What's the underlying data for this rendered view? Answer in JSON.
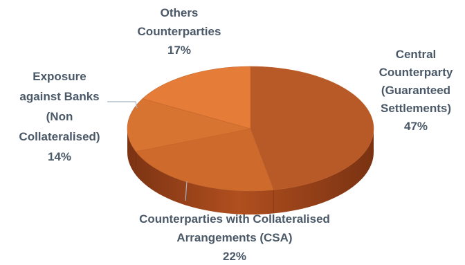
{
  "chart_data": {
    "type": "pie",
    "style": "3d",
    "slices": [
      {
        "label": [
          "Central",
          "Counterparty",
          "(Guaranteed",
          "Settlements)"
        ],
        "value": 47,
        "value_label": "47%",
        "color": "#b85a28"
      },
      {
        "label": [
          "Counterparties with Collateralised",
          "Arrangements (CSA)"
        ],
        "value": 22,
        "value_label": "22%",
        "color": "#cd6a2c"
      },
      {
        "label": [
          "Exposure",
          "against Banks",
          "(Non",
          "Collateralised)"
        ],
        "value": 14,
        "value_label": "14%",
        "color": "#d87432"
      },
      {
        "label": [
          "Others",
          "Counterparties"
        ],
        "value": 17,
        "value_label": "17%",
        "color": "#e57c38"
      }
    ],
    "label_color": "#4a5867",
    "leader_line_color": "#a6b4c4"
  }
}
